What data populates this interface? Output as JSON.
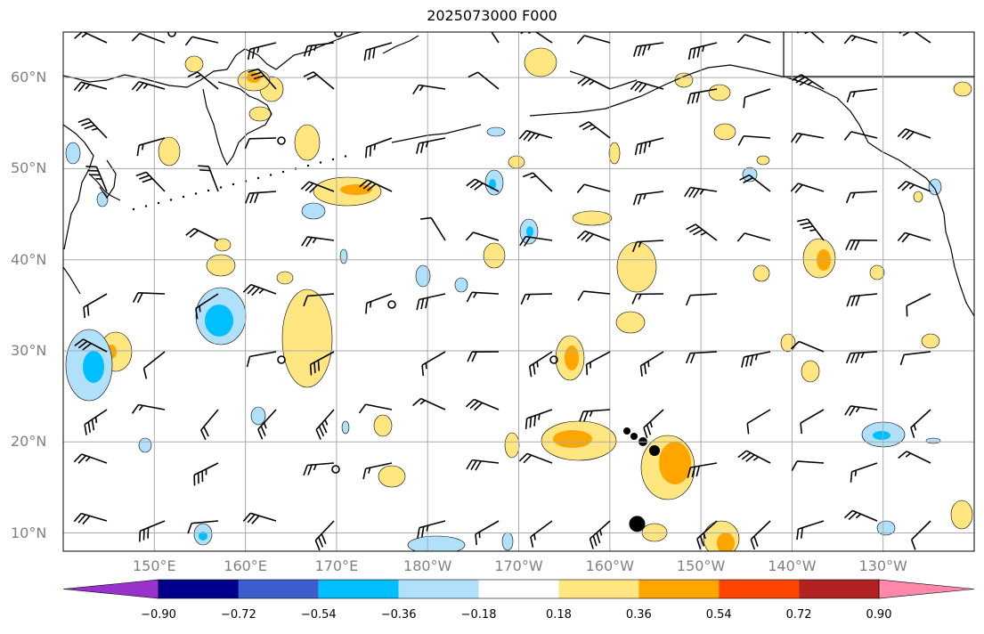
{
  "title": "2025073000 F000",
  "lat_labels": [
    "60°N",
    "50°N",
    "40°N",
    "30°N",
    "20°N",
    "10°N"
  ],
  "lon_labels": [
    "150°E",
    "160°E",
    "170°E",
    "180°W",
    "170°W",
    "160°W",
    "150°W",
    "140°W",
    "130°W"
  ],
  "colorbar": {
    "levels": [
      "−0.90",
      "−0.72",
      "−0.54",
      "−0.36",
      "−0.18",
      "0.18",
      "0.36",
      "0.54",
      "0.72",
      "0.90"
    ],
    "colors": [
      "#9932cc",
      "#00008b",
      "#3a5fcd",
      "#00bfff",
      "#b0e0fa",
      "#ffffff",
      "#ffe680",
      "#ffa500",
      "#ff4500",
      "#b22222",
      "#ff88aa"
    ]
  },
  "map": {
    "lat_range_deg": [
      8,
      65
    ],
    "lon_range_east_deg": [
      140,
      240
    ],
    "fill_colors": {
      "pos_low": "#ffe680",
      "pos_mid": "#ffa500",
      "pos_high": "#ff4500",
      "neg_low": "#b0e0fa",
      "neg_mid": "#00bfff"
    },
    "marker_lat_lon": [
      11,
      203
    ]
  }
}
